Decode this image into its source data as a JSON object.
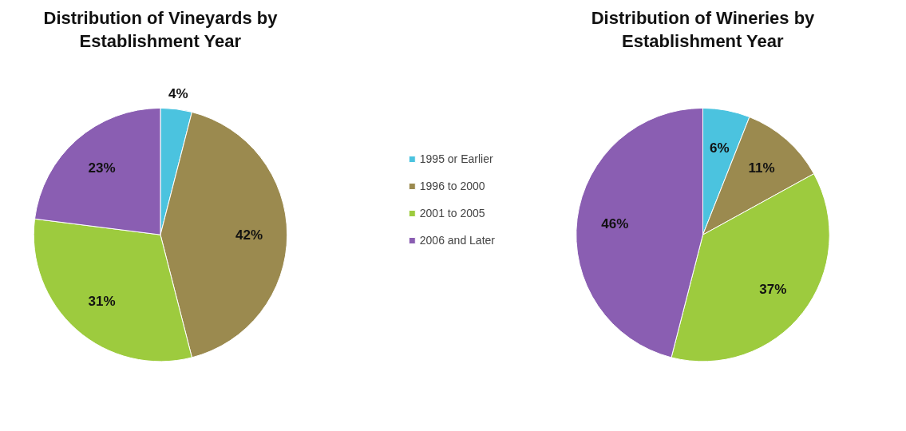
{
  "chart_data": [
    {
      "type": "pie",
      "title": "Distribution of Vineyards by Establishment Year",
      "categories": [
        "1995 or Earlier",
        "1996 to 2000",
        "2001 to 2005",
        "2006 and Later"
      ],
      "values": [
        4,
        42,
        31,
        23
      ],
      "value_labels": [
        "4%",
        "42%",
        "31%",
        "23%"
      ],
      "colors": [
        "#4bc3df",
        "#9b8a4f",
        "#9dcb3e",
        "#8a5eb2"
      ],
      "legend": "right"
    },
    {
      "type": "pie",
      "title": "Distribution of Wineries by Establishment Year",
      "categories": [
        null,
        null,
        null,
        null
      ],
      "values": [
        6,
        11,
        37,
        46
      ],
      "value_labels": [
        "6%",
        "11%",
        "37%",
        "46%"
      ],
      "colors": [
        "#4bc3df",
        "#9b8a4f",
        "#9dcb3e",
        "#8a5eb2"
      ]
    }
  ]
}
